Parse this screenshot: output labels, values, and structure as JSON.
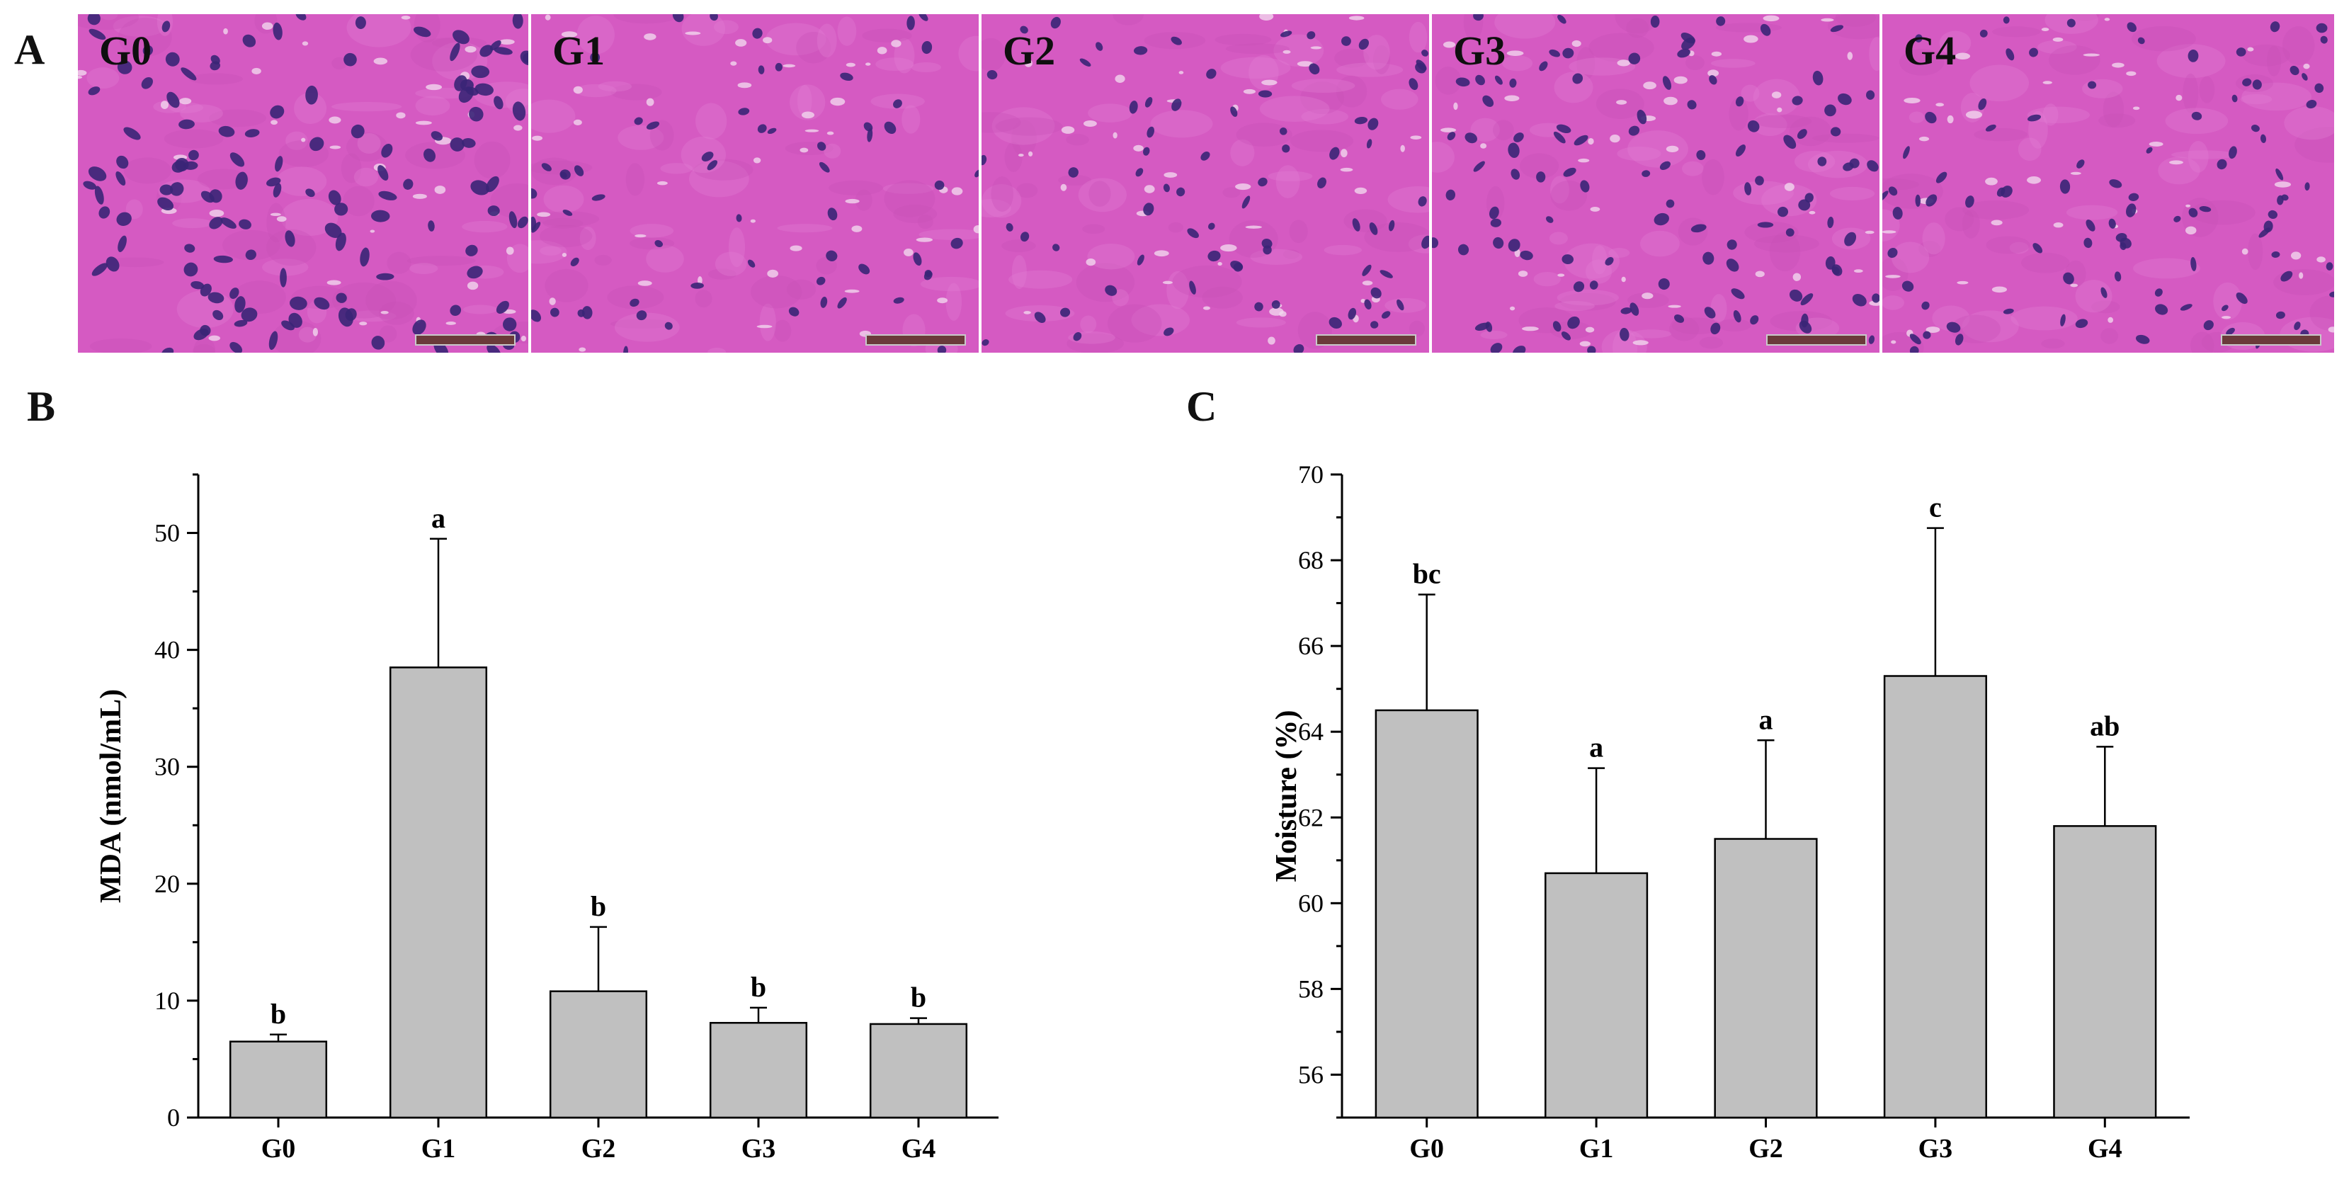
{
  "panel_letters": [
    "A",
    "B",
    "C"
  ],
  "micrographs": [
    {
      "label": "G0",
      "nuclei": 130,
      "nucleus_size": 1.15,
      "seed": 11
    },
    {
      "label": "G1",
      "nuclei": 60,
      "nucleus_size": 0.85,
      "seed": 23
    },
    {
      "label": "G2",
      "nuclei": 75,
      "nucleus_size": 0.85,
      "seed": 37
    },
    {
      "label": "G3",
      "nuclei": 110,
      "nucleus_size": 0.95,
      "seed": 51
    },
    {
      "label": "G4",
      "nuclei": 95,
      "nucleus_size": 0.85,
      "seed": 67
    }
  ],
  "colors": {
    "stain": "#d55ac2",
    "nucleus": "#3a2577",
    "vacuole": "#f1d6ee",
    "bar": "#c0c0c0",
    "axis": "#000000"
  },
  "chart_data": [
    {
      "type": "bar",
      "categories": [
        "G0",
        "G1",
        "G2",
        "G3",
        "G4"
      ],
      "values": [
        6.5,
        38.5,
        10.8,
        8.1,
        8.0
      ],
      "errors": [
        0.6,
        11.0,
        5.5,
        1.3,
        0.5
      ],
      "significance": [
        "b",
        "a",
        "b",
        "b",
        "b"
      ],
      "title": "",
      "xlabel": "",
      "ylabel": "MDA (nmol/mL)",
      "ylim": [
        0,
        55
      ],
      "yticks": [
        0,
        10,
        20,
        30,
        40,
        50
      ],
      "minor_step": 5,
      "grid": false
    },
    {
      "type": "bar",
      "categories": [
        "G0",
        "G1",
        "G2",
        "G3",
        "G4"
      ],
      "values": [
        64.5,
        60.7,
        61.5,
        65.3,
        61.8
      ],
      "errors": [
        2.7,
        2.45,
        2.3,
        3.45,
        1.85
      ],
      "significance": [
        "bc",
        "a",
        "a",
        "c",
        "ab"
      ],
      "title": "",
      "xlabel": "",
      "ylabel": "Moisture (%)",
      "ylim": [
        55,
        70
      ],
      "yticks": [
        56,
        58,
        60,
        62,
        64,
        66,
        68,
        70
      ],
      "minor_step": 1,
      "grid": false
    }
  ]
}
